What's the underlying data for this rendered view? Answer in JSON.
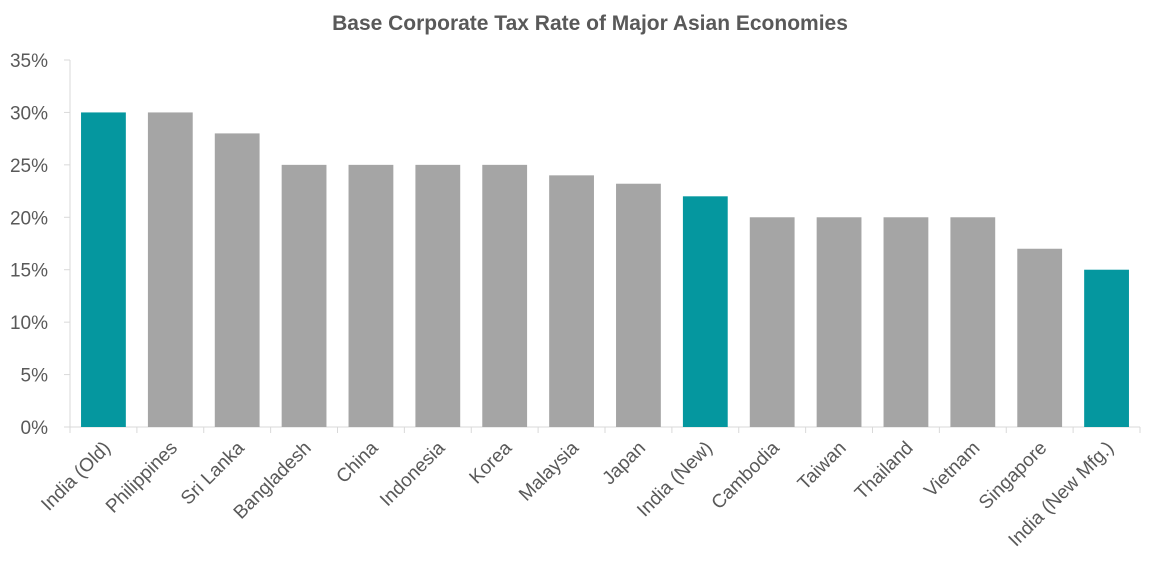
{
  "chart_data": {
    "type": "bar",
    "title": "Base Corporate Tax Rate of Major Asian Economies",
    "xlabel": "",
    "ylabel": "",
    "ylim": [
      0,
      35
    ],
    "yticks": [
      "0%",
      "5%",
      "10%",
      "15%",
      "20%",
      "25%",
      "30%",
      "35%"
    ],
    "ytick_values": [
      0,
      5,
      10,
      15,
      20,
      25,
      30,
      35
    ],
    "categories": [
      "India (Old)",
      "Philippines",
      "Sri Lanka",
      "Bangladesh",
      "China",
      "Indonesia",
      "Korea",
      "Malaysia",
      "Japan",
      "India (New)",
      "Cambodia",
      "Taiwan",
      "Thailand",
      "Vietnam",
      "Singapore",
      "India (New Mfg.)"
    ],
    "values": [
      30,
      30,
      28,
      25,
      25,
      25,
      25,
      24,
      23.2,
      22,
      20,
      20,
      20,
      20,
      17,
      15
    ],
    "highlight": [
      true,
      false,
      false,
      false,
      false,
      false,
      false,
      false,
      false,
      true,
      false,
      false,
      false,
      false,
      false,
      true
    ],
    "grid": false,
    "colors": {
      "highlight": "#05979F",
      "default": "#A5A5A5",
      "axis": "#D9D9D9",
      "text": "#595959"
    }
  }
}
